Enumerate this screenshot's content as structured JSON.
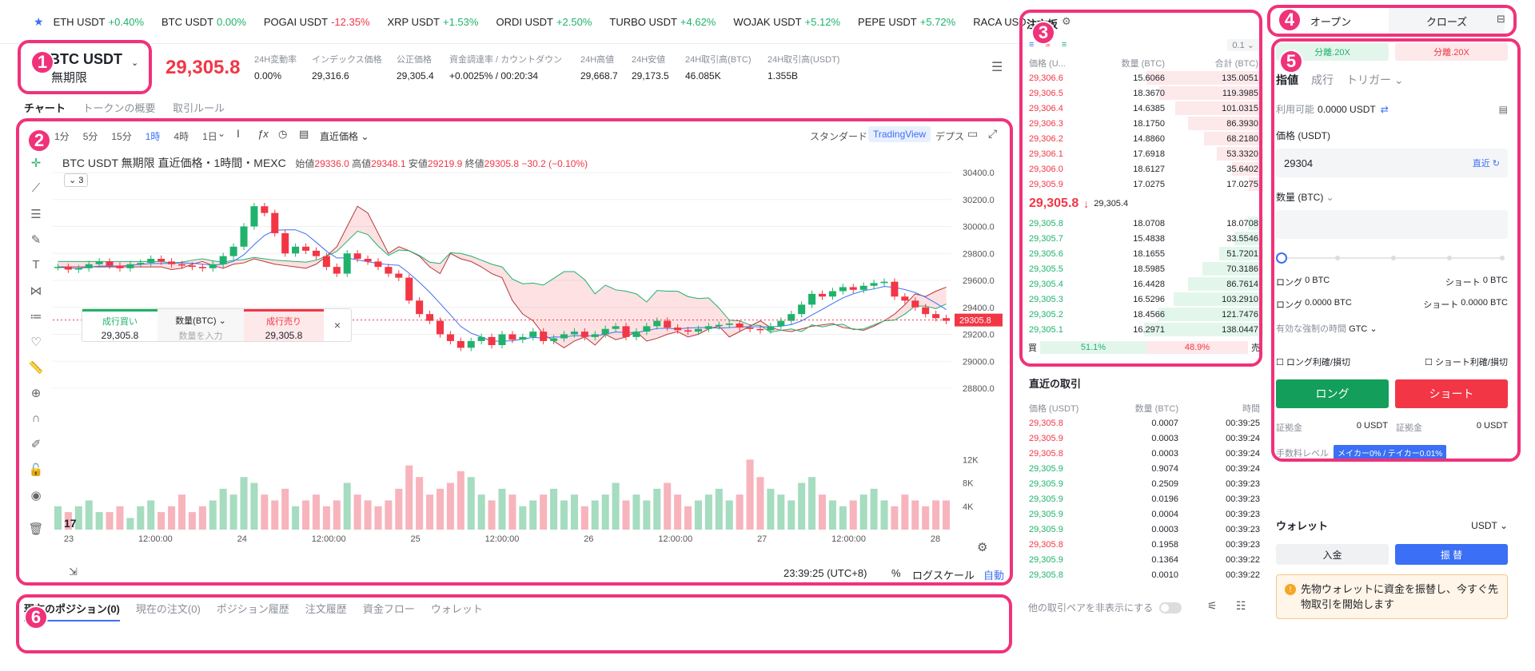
{
  "ticker": [
    {
      "sym": "ETH USDT",
      "chg": "+0.40%",
      "dir": "up"
    },
    {
      "sym": "BTC USDT",
      "chg": "0.00%",
      "dir": "up"
    },
    {
      "sym": "POGAI USDT",
      "chg": "-12.35%",
      "dir": "down"
    },
    {
      "sym": "XRP USDT",
      "chg": "+1.53%",
      "dir": "up"
    },
    {
      "sym": "ORDI USDT",
      "chg": "+2.50%",
      "dir": "up"
    },
    {
      "sym": "TURBO USDT",
      "chg": "+4.62%",
      "dir": "up"
    },
    {
      "sym": "WOJAK USDT",
      "chg": "+5.12%",
      "dir": "up"
    },
    {
      "sym": "PEPE USDT",
      "chg": "+5.72%",
      "dir": "up"
    },
    {
      "sym": "RACA USD",
      "chg": "",
      "dir": "up"
    }
  ],
  "symbol": {
    "name": "BTC USDT",
    "type": "無期限",
    "price": "29,305.8"
  },
  "stats": [
    {
      "label": "24H変動率",
      "value": "0.00%",
      "color": "green"
    },
    {
      "label": "インデックス価格",
      "value": "29,316.6",
      "color": ""
    },
    {
      "label": "公正価格",
      "value": "29,305.4",
      "color": ""
    },
    {
      "label": "資金調達率 / カウントダウン",
      "value": "+0.0025% / 00:20:34",
      "color": ""
    },
    {
      "label": "24H高値",
      "value": "29,668.7",
      "color": ""
    },
    {
      "label": "24H安値",
      "value": "29,173.5",
      "color": ""
    },
    {
      "label": "24H取引高(BTC)",
      "value": "46.085K",
      "color": ""
    },
    {
      "label": "24H取引高(USDT)",
      "value": "1.355B",
      "color": ""
    }
  ],
  "tabs": [
    "チャート",
    "トークンの概要",
    "取引ルール"
  ],
  "intervals": [
    "1分",
    "5分",
    "15分",
    "1時",
    "4時",
    "1日"
  ],
  "interval_active": "1時",
  "chart_toolbar": {
    "price_type": "直近価格",
    "standard": "スタンダード",
    "tv": "TradingView",
    "depth": "デプス"
  },
  "chart_legend": {
    "title": "BTC USDT 無期限 直近価格・1時間・MEXC",
    "o_label": "始値",
    "o": "29336.0",
    "h_label": "高値",
    "h": "29348.1",
    "l_label": "安値",
    "l": "29219.9",
    "c_label": "終値",
    "c": "29305.8",
    "chg": "−30.2 (−0.10%)",
    "count": "3"
  },
  "chart_data": {
    "type": "line",
    "ylim": [
      28800,
      30400
    ],
    "y_ticks": [
      "30400.0",
      "30200.0",
      "30000.0",
      "29800.0",
      "29600.0",
      "29400.0",
      "29200.0",
      "29000.0",
      "28800.0"
    ],
    "x_ticks": [
      "23",
      "12:00:00",
      "24",
      "12:00:00",
      "25",
      "12:00:00",
      "26",
      "12:00:00",
      "27",
      "12:00:00",
      "28"
    ],
    "vol_ticks": [
      "12K",
      "8K",
      "4K"
    ],
    "last_price_label": "29305.8",
    "close": [
      29700,
      29680,
      29690,
      29720,
      29740,
      29710,
      29690,
      29720,
      29730,
      29760,
      29740,
      29720,
      29710,
      29700,
      29690,
      29720,
      29780,
      29850,
      30000,
      30150,
      30100,
      29950,
      29800,
      29850,
      29820,
      29780,
      29700,
      29650,
      29800,
      29760,
      29740,
      29700,
      29650,
      29620,
      29450,
      29350,
      29300,
      29200,
      29150,
      29100,
      29150,
      29180,
      29120,
      29200,
      29160,
      29180,
      29220,
      29150,
      29170,
      29200,
      29220,
      29180,
      29200,
      29240,
      29260,
      29180,
      29220,
      29260,
      29300,
      29250,
      29230,
      29220,
      29240,
      29260,
      29270,
      29280,
      29250,
      29240,
      29230,
      29260,
      29300,
      29350,
      29420,
      29500,
      29480,
      29520,
      29550,
      29530,
      29560,
      29580,
      29590,
      29480,
      29450,
      29400,
      29350,
      29320,
      29300
    ],
    "volume": [
      4,
      3,
      4,
      5,
      3,
      3,
      4,
      2,
      4,
      5,
      3,
      4,
      6,
      3,
      4,
      5,
      7,
      6,
      9,
      8,
      6,
      5,
      7,
      4,
      5,
      6,
      4,
      5,
      8,
      6,
      5,
      4,
      5,
      7,
      11,
      9,
      6,
      7,
      8,
      10,
      9,
      6,
      5,
      7,
      6,
      4,
      5,
      6,
      7,
      5,
      6,
      4,
      5,
      6,
      8,
      5,
      6,
      5,
      7,
      8,
      6,
      4,
      5,
      6,
      7,
      5,
      6,
      12,
      9,
      7,
      6,
      5,
      8,
      9,
      6,
      5,
      4,
      5,
      6,
      7,
      5,
      4,
      6,
      5,
      4,
      5,
      5
    ]
  },
  "quick_trade": {
    "buy": "成行買い",
    "qty_label": "数量(BTC)",
    "qty_placeholder": "数量を入力",
    "sell": "成行売り",
    "buy_price": "29,305.8",
    "sell_price": "29,305.8"
  },
  "chart_footer": {
    "time": "23:39:25 (UTC+8)",
    "pct": "%",
    "log": "ログスケール",
    "auto": "自動"
  },
  "orderbook": {
    "title": "注文板",
    "step": "0.1",
    "cols": [
      "価格 (U...",
      "数量 (BTC)",
      "合計 (BTC)"
    ],
    "asks": [
      [
        "29,306.6",
        "15.6066",
        "135.0051",
        0.98
      ],
      [
        "29,306.5",
        "18.3670",
        "119.3985",
        0.87
      ],
      [
        "29,306.4",
        "14.6385",
        "101.0315",
        0.74
      ],
      [
        "29,306.3",
        "18.1750",
        "86.3930",
        0.63
      ],
      [
        "29,306.2",
        "14.8860",
        "68.2180",
        0.5
      ],
      [
        "29,306.1",
        "17.6918",
        "53.3320",
        0.39
      ],
      [
        "29,306.0",
        "18.6127",
        "35.6402",
        0.26
      ],
      [
        "29,305.9",
        "17.0275",
        "17.0275",
        0.12
      ]
    ],
    "mid_price": "29,305.8",
    "mid_arrow": "↓",
    "mid_mark": "29,305.4",
    "bids": [
      [
        "29,305.8",
        "18.0708",
        "18.0708",
        0.13
      ],
      [
        "29,305.7",
        "15.4838",
        "33.5546",
        0.24
      ],
      [
        "29,305.6",
        "18.1655",
        "51.7201",
        0.37
      ],
      [
        "29,305.5",
        "18.5985",
        "70.3186",
        0.51
      ],
      [
        "29,305.4",
        "16.4428",
        "86.7614",
        0.63
      ],
      [
        "29,305.3",
        "16.5296",
        "103.2910",
        0.75
      ],
      [
        "29,305.2",
        "18.4566",
        "121.7476",
        0.88
      ],
      [
        "29,305.1",
        "16.2971",
        "138.0447",
        1.0
      ]
    ],
    "buy_label": "買",
    "sell_label": "売",
    "buy_pct": "51.1%",
    "sell_pct": "48.9%",
    "buy_ratio": 0.511
  },
  "recent": {
    "title": "直近の取引",
    "cols": [
      "価格 (USDT)",
      "数量 (BTC)",
      "時間"
    ],
    "rows": [
      [
        "29,305.8",
        "0.0007",
        "00:39:25",
        "down"
      ],
      [
        "29,305.9",
        "0.0003",
        "00:39:24",
        "down"
      ],
      [
        "29,305.8",
        "0.0003",
        "00:39:24",
        "down"
      ],
      [
        "29,305.9",
        "0.9074",
        "00:39:24",
        "up"
      ],
      [
        "29,305.9",
        "0.2509",
        "00:39:23",
        "up"
      ],
      [
        "29,305.9",
        "0.0196",
        "00:39:23",
        "up"
      ],
      [
        "29,305.9",
        "0.0004",
        "00:39:23",
        "up"
      ],
      [
        "29,305.9",
        "0.0003",
        "00:39:23",
        "up"
      ],
      [
        "29,305.8",
        "0.1958",
        "00:39:23",
        "down"
      ],
      [
        "29,305.9",
        "0.1364",
        "00:39:22",
        "up"
      ],
      [
        "29,305.8",
        "0.0010",
        "00:39:22",
        "up"
      ]
    ]
  },
  "trade": {
    "open": "オープン",
    "close": "クローズ",
    "margin_long": "分離.20X",
    "margin_short": "分離.20X",
    "order_types": [
      "指値",
      "成行",
      "トリガー"
    ],
    "available_label": "利用可能",
    "available": "0.0000 USDT",
    "price_label": "価格 (USDT)",
    "price_value": "29304",
    "latest": "直近",
    "qty_label": "数量 (BTC)",
    "long_label": "ロング",
    "long_v1": "0 BTC",
    "short_label": "ショート",
    "short_v1": "0 BTC",
    "long_v2": "0.0000 BTC",
    "short_v2": "0.0000 BTC",
    "tif_label": "有効な強制の時間",
    "tif": "GTC",
    "long_tpsl": "ロング利確/損切",
    "short_tpsl": "ショート利確/損切",
    "long_btn": "ロング",
    "short_btn": "ショート",
    "margin_label": "証拠金",
    "margin_long_v": "0 USDT",
    "margin_short_v": "0 USDT",
    "fee_label": "手数料レベル",
    "fee": "メイカー0% / テイカー0.01%"
  },
  "wallet": {
    "title": "ウォレット",
    "currency": "USDT",
    "deposit": "入金",
    "transfer": "振 替",
    "notice": "先物ウォレットに資金を振替し、今すぐ先物取引を開始します"
  },
  "bottom": {
    "tabs": [
      "現在のポジション(0)",
      "現在の注文(0)",
      "ポジション履歴",
      "注文履歴",
      "資金フロー",
      "ウォレット"
    ],
    "hide_pairs": "他の取引ペアを非表示にする"
  },
  "annotations": [
    "1",
    "2",
    "3",
    "4",
    "5",
    "6"
  ]
}
